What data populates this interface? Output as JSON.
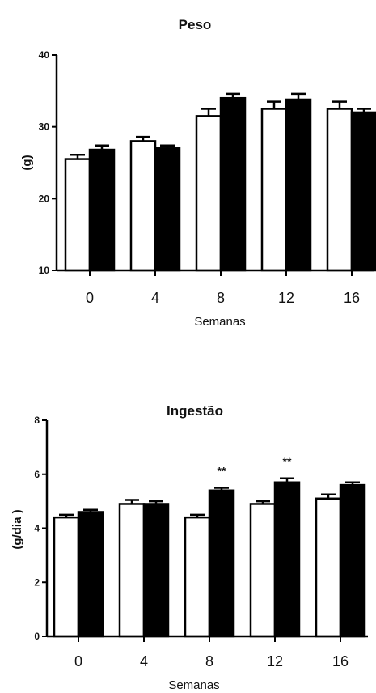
{
  "chart_data": [
    {
      "type": "bar",
      "title": "Peso",
      "ylabel": "(g)",
      "xlabel": "Semanas",
      "categories": [
        "0",
        "4",
        "8",
        "12",
        "16"
      ],
      "ylim": [
        10,
        40
      ],
      "yticks": [
        "10",
        "20",
        "30",
        "40"
      ],
      "series": [
        {
          "color": "#ffffff",
          "values": [
            25.5,
            28.0,
            31.5,
            32.5,
            32.5
          ],
          "errors": [
            0.6,
            0.6,
            1.0,
            1.0,
            1.0
          ]
        },
        {
          "color": "#000000",
          "values": [
            26.8,
            27.0,
            34.0,
            33.8,
            32.0
          ],
          "errors": [
            0.6,
            0.4,
            0.6,
            0.8,
            0.5
          ]
        }
      ],
      "annotations": []
    },
    {
      "type": "bar",
      "title": "Ingestão",
      "ylabel": "(g/dia )",
      "xlabel": "Semanas",
      "categories": [
        "0",
        "4",
        "8",
        "12",
        "16"
      ],
      "ylim": [
        0,
        8
      ],
      "yticks": [
        "0",
        "2",
        "4",
        "6",
        "8"
      ],
      "series": [
        {
          "color": "#ffffff",
          "values": [
            4.4,
            4.9,
            4.4,
            4.9,
            5.1
          ],
          "errors": [
            0.1,
            0.15,
            0.1,
            0.1,
            0.15
          ]
        },
        {
          "color": "#000000",
          "values": [
            4.6,
            4.9,
            5.4,
            5.7,
            5.6
          ],
          "errors": [
            0.08,
            0.1,
            0.1,
            0.15,
            0.1
          ]
        }
      ],
      "annotations": [
        {
          "category": "8",
          "series": 1,
          "text": "**"
        },
        {
          "category": "12",
          "series": 1,
          "text": "**"
        }
      ]
    }
  ]
}
